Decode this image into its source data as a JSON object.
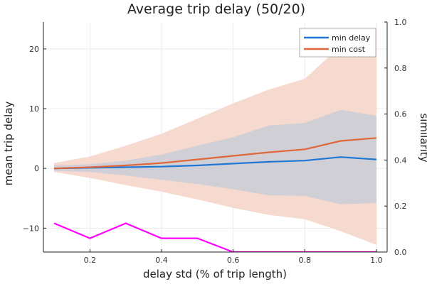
{
  "chart_data": {
    "type": "line",
    "title": "Average trip delay (50/20)",
    "xlabel": "delay std (% of trip length)",
    "ylabel": "mean trip delay",
    "y2label": "similarity",
    "xlim": [
      0.07,
      1.03
    ],
    "ylim": [
      -14,
      24.5
    ],
    "y2lim": [
      0,
      1
    ],
    "xticks": [
      "0.2",
      "0.4",
      "0.6",
      "0.8",
      "1.0"
    ],
    "yticks": [
      "−10",
      "0",
      "10",
      "20"
    ],
    "y2ticks": [
      "0.0",
      "0.2",
      "0.4",
      "0.6",
      "0.8",
      "1.0"
    ],
    "grid": true,
    "legend_position": "top-right",
    "x": [
      0.1,
      0.2,
      0.3,
      0.4,
      0.5,
      0.6,
      0.7,
      0.8,
      0.9,
      1.0
    ],
    "series": [
      {
        "name": "min delay",
        "color": "#1f77d4",
        "values": [
          0.0,
          0.1,
          0.2,
          0.3,
          0.5,
          0.8,
          1.1,
          1.3,
          1.9,
          1.5
        ],
        "band_lower": [
          -0.4,
          -0.6,
          -1.2,
          -1.9,
          -2.6,
          -3.5,
          -4.5,
          -4.6,
          -6.0,
          -5.8
        ],
        "band_upper": [
          0.5,
          0.7,
          1.3,
          2.3,
          3.8,
          5.2,
          7.2,
          7.6,
          9.8,
          8.8
        ],
        "band_color": "#c9ccd6"
      },
      {
        "name": "min cost",
        "color": "#e0673b",
        "values": [
          0.0,
          0.2,
          0.5,
          0.9,
          1.5,
          2.1,
          2.7,
          3.2,
          4.6,
          5.1
        ],
        "band_lower": [
          -0.6,
          -1.6,
          -2.8,
          -3.9,
          -5.2,
          -6.6,
          -7.8,
          -8.5,
          -10.5,
          -12.8
        ],
        "band_upper": [
          0.9,
          2.0,
          3.8,
          5.8,
          8.3,
          10.9,
          13.2,
          15.0,
          20.5,
          23.5
        ],
        "band_color": "#f6d9cf"
      },
      {
        "name": "",
        "color": "#ff00ff",
        "axis": "right",
        "values": [
          0.125,
          0.06,
          0.125,
          0.06,
          0.06,
          0.0,
          0.0,
          0.0,
          0.0,
          0.0
        ]
      }
    ]
  }
}
